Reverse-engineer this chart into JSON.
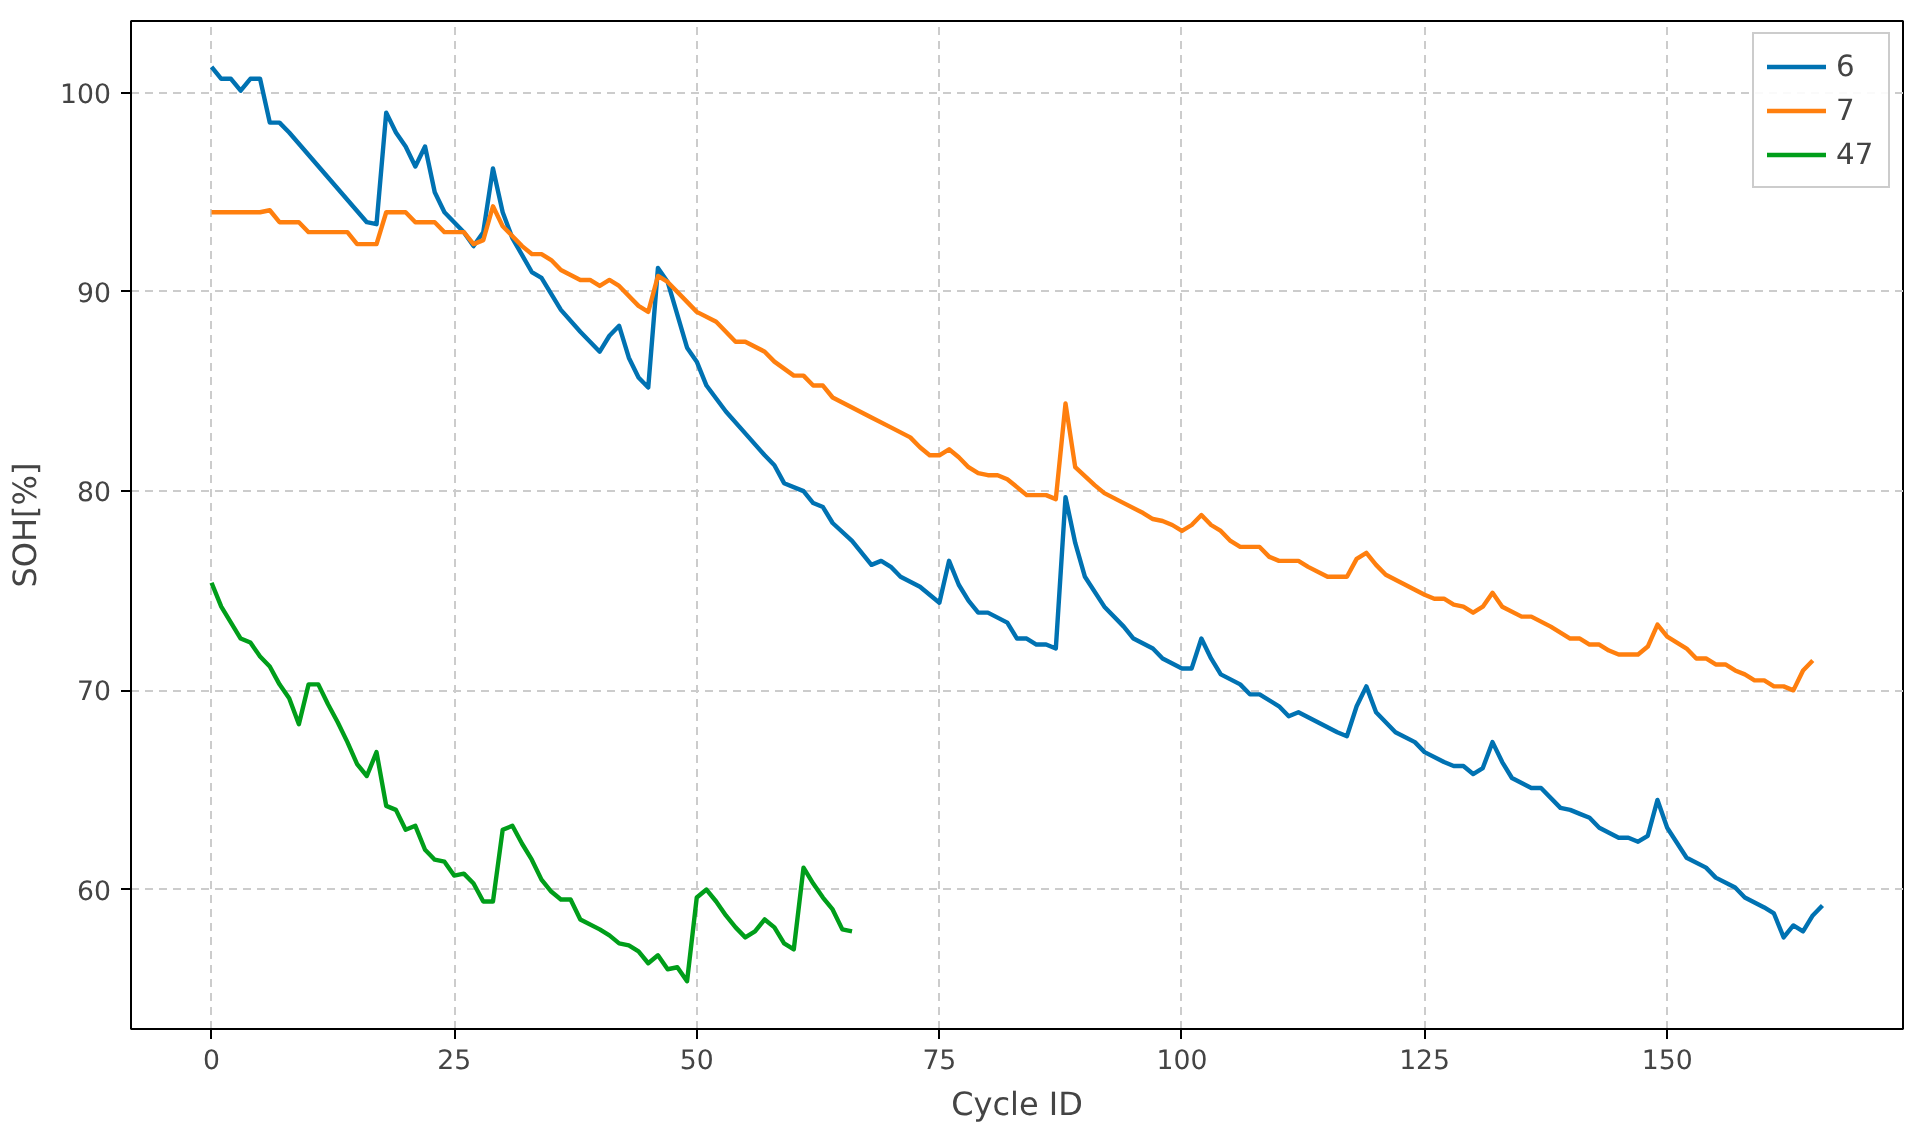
{
  "chart_data": {
    "type": "line",
    "xlabel": "Cycle ID",
    "ylabel": "SOH[%]",
    "xlim": [
      -8.3,
      174.3
    ],
    "ylim": [
      53.0,
      103.6
    ],
    "xticks": [
      0,
      25,
      50,
      75,
      100,
      125,
      150
    ],
    "yticks": [
      60,
      70,
      80,
      90,
      100
    ],
    "grid": true,
    "legend": "top right",
    "line_style": "solid",
    "marker": "none",
    "series": [
      {
        "name": "6",
        "color": "#0072b2",
        "x": [
          0,
          1,
          2,
          3,
          4,
          5,
          6,
          7,
          8,
          16,
          17,
          18,
          19,
          20,
          21,
          22,
          23,
          24,
          26,
          27,
          28,
          29,
          30,
          31,
          33,
          34,
          36,
          38,
          40,
          41,
          42,
          43,
          44,
          45,
          46,
          47,
          49,
          50,
          51,
          53,
          55,
          57,
          58,
          59,
          61,
          62,
          63,
          64,
          66,
          68,
          69,
          70,
          71,
          73,
          75,
          76,
          77,
          78,
          79,
          80,
          82,
          83,
          84,
          85,
          86,
          87,
          88,
          89,
          90,
          92,
          94,
          95,
          97,
          98,
          100,
          101,
          102,
          103,
          104,
          106,
          107,
          108,
          110,
          111,
          112,
          114,
          116,
          117,
          118,
          119,
          120,
          122,
          124,
          125,
          127,
          128,
          129,
          130,
          131,
          132,
          133,
          134,
          136,
          137,
          139,
          140,
          141,
          142,
          143,
          145,
          146,
          147,
          148,
          149,
          150,
          152,
          154,
          155,
          157,
          158,
          160,
          161,
          162,
          163,
          164,
          165,
          166
        ],
        "values": [
          101.3,
          100.7,
          100.7,
          100.1,
          100.7,
          100.7,
          98.5,
          98.5,
          98,
          93.5,
          93.4,
          99,
          98,
          97.3,
          96.3,
          97.3,
          95,
          94,
          93,
          92.3,
          93,
          96.2,
          94,
          92.7,
          91,
          90.7,
          89.1,
          88,
          87,
          87.8,
          88.3,
          86.7,
          85.7,
          85.2,
          91.2,
          90.5,
          87.2,
          86.5,
          85.3,
          84,
          82.9,
          81.8,
          81.3,
          80.4,
          80,
          79.4,
          79.2,
          78.4,
          77.5,
          76.3,
          76.5,
          76.2,
          75.7,
          75.2,
          74.4,
          76.5,
          75.3,
          74.5,
          73.9,
          73.9,
          73.4,
          72.6,
          72.6,
          72.3,
          72.3,
          72.1,
          79.7,
          77.4,
          75.7,
          74.2,
          73.2,
          72.6,
          72.1,
          71.6,
          71.1,
          71.1,
          72.6,
          71.6,
          70.8,
          70.3,
          69.8,
          69.8,
          69.2,
          68.7,
          68.9,
          68.4,
          67.9,
          67.7,
          69.2,
          70.2,
          68.9,
          67.9,
          67.4,
          66.9,
          66.4,
          66.2,
          66.2,
          65.8,
          66.1,
          67.4,
          66.4,
          65.6,
          65.1,
          65.1,
          64.1,
          64,
          63.8,
          63.6,
          63.1,
          62.6,
          62.6,
          62.4,
          62.7,
          64.5,
          63.1,
          61.6,
          61.1,
          60.6,
          60.1,
          59.6,
          59.1,
          58.8,
          57.6,
          58.2,
          57.9,
          58.7,
          59.2
        ]
      },
      {
        "name": "7",
        "color": "#ff7f0e",
        "x": [
          0,
          5,
          6,
          7,
          9,
          10,
          14,
          15,
          17,
          18,
          20,
          21,
          23,
          24,
          26,
          27,
          28,
          29,
          30,
          32,
          33,
          34,
          35,
          36,
          38,
          39,
          40,
          41,
          42,
          44,
          45,
          46,
          47,
          49,
          50,
          52,
          54,
          55,
          57,
          58,
          60,
          61,
          62,
          63,
          64,
          66,
          68,
          70,
          72,
          73,
          74,
          75,
          76,
          77,
          78,
          79,
          80,
          81,
          82,
          83,
          84,
          86,
          87,
          88,
          89,
          91,
          92,
          94,
          96,
          97,
          98,
          99,
          100,
          101,
          102,
          103,
          104,
          105,
          106,
          108,
          109,
          110,
          112,
          113,
          115,
          117,
          118,
          119,
          120,
          121,
          123,
          125,
          126,
          127,
          128,
          129,
          130,
          131,
          132,
          133,
          135,
          136,
          138,
          140,
          141,
          142,
          143,
          144,
          145,
          147,
          148,
          149,
          150,
          152,
          153,
          154,
          155,
          156,
          157,
          158,
          159,
          160,
          161,
          162,
          163,
          164,
          165
        ],
        "values": [
          94,
          94,
          94.1,
          93.5,
          93.5,
          93,
          93,
          92.4,
          92.4,
          94,
          94,
          93.5,
          93.5,
          93,
          93,
          92.4,
          92.6,
          94.3,
          93.3,
          92.3,
          91.9,
          91.9,
          91.6,
          91.1,
          90.6,
          90.6,
          90.3,
          90.6,
          90.3,
          89.3,
          89,
          90.8,
          90.5,
          89.5,
          89,
          88.5,
          87.5,
          87.5,
          87,
          86.5,
          85.8,
          85.8,
          85.3,
          85.3,
          84.7,
          84.2,
          83.7,
          83.2,
          82.7,
          82.2,
          81.8,
          81.8,
          82.1,
          81.7,
          81.2,
          80.9,
          80.8,
          80.8,
          80.6,
          80.2,
          79.8,
          79.8,
          79.6,
          84.4,
          81.2,
          80.3,
          79.9,
          79.4,
          78.9,
          78.6,
          78.5,
          78.3,
          78,
          78.3,
          78.8,
          78.3,
          78,
          77.5,
          77.2,
          77.2,
          76.7,
          76.5,
          76.5,
          76.2,
          75.7,
          75.7,
          76.6,
          76.9,
          76.3,
          75.8,
          75.3,
          74.8,
          74.6,
          74.6,
          74.3,
          74.2,
          73.9,
          74.2,
          74.9,
          74.2,
          73.7,
          73.7,
          73.2,
          72.6,
          72.6,
          72.3,
          72.3,
          72,
          71.8,
          71.8,
          72.2,
          73.3,
          72.7,
          72.1,
          71.6,
          71.6,
          71.3,
          71.3,
          71,
          70.8,
          70.5,
          70.5,
          70.2,
          70.2,
          70,
          71,
          71.5
        ]
      },
      {
        "name": "47",
        "color": "#009e1a",
        "x": [
          0,
          1,
          2,
          3,
          4,
          5,
          6,
          7,
          8,
          9,
          10,
          11,
          12,
          13,
          14,
          15,
          16,
          17,
          18,
          19,
          20,
          21,
          22,
          23,
          24,
          25,
          26,
          27,
          28,
          29,
          30,
          31,
          32,
          33,
          34,
          35,
          36,
          37,
          38,
          40,
          41,
          42,
          43,
          44,
          45,
          46,
          47,
          48,
          49,
          50,
          51,
          52,
          53,
          54,
          55,
          56,
          57,
          58,
          59,
          60,
          61,
          62,
          63,
          64,
          65,
          66
        ],
        "values": [
          75.4,
          74.2,
          73.4,
          72.6,
          72.4,
          71.7,
          71.2,
          70.3,
          69.6,
          68.3,
          70.3,
          70.3,
          69.3,
          68.4,
          67.4,
          66.3,
          65.7,
          66.9,
          64.2,
          64,
          63,
          63.2,
          62,
          61.5,
          61.4,
          60.7,
          60.8,
          60.3,
          59.4,
          59.4,
          63,
          63.2,
          62.3,
          61.5,
          60.5,
          59.9,
          59.5,
          59.5,
          58.5,
          58,
          57.7,
          57.3,
          57.2,
          56.9,
          56.3,
          56.7,
          56,
          56.1,
          55.4,
          59.6,
          60,
          59.4,
          58.7,
          58.1,
          57.6,
          57.9,
          58.5,
          58.1,
          57.3,
          57,
          61.1,
          60.3,
          59.6,
          59,
          58,
          57.9
        ]
      }
    ]
  }
}
